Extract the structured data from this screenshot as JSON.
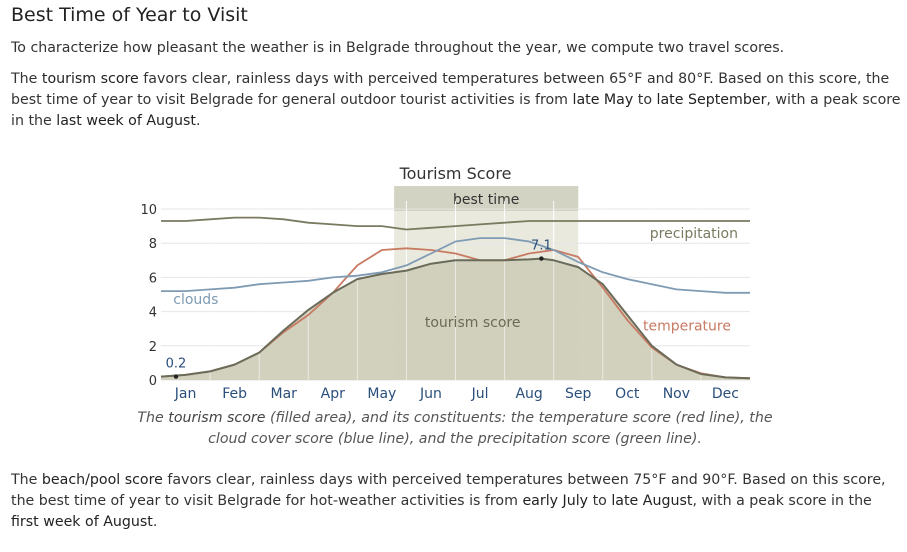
{
  "section": {
    "title": "Best Time of Year to Visit",
    "intro": "To characterize how pleasant the weather is in Belgrade throughout the year, we compute two travel scores."
  },
  "tourism_paragraph": {
    "t1": "The ",
    "t2": "tourism score",
    "t3": " favors clear, rainless days with perceived temperatures between 65°F and 80°F. Based on this score, the best time of year to visit Belgrade for general outdoor tourist activities is from ",
    "t4": "late May",
    "t5": " to ",
    "t6": "late September",
    "t7": ", with a peak score in the ",
    "t8": "last week of August",
    "t9": "."
  },
  "caption": {
    "c1": "The ",
    "c2": "tourism score",
    "c3": " (filled area), and its constituents: the temperature score (red line), the cloud cover score (blue line), and the precipitation score (green line)."
  },
  "beach_paragraph": {
    "t1": "The ",
    "t2": "beach/pool score",
    "t3": " favors clear, rainless days with perceived temperatures between 75°F and 90°F. Based on this score, the best time of year to visit Belgrade for hot-weather activities is from ",
    "t4": "early July",
    "t5": " to ",
    "t6": "late August",
    "t7": ", with a peak score in the ",
    "t8": "first week of August",
    "t9": "."
  },
  "chart_data": {
    "type": "area",
    "title": "Tourism Score",
    "ylim": [
      0,
      10
    ],
    "yticks": [
      0,
      2,
      4,
      6,
      8,
      10
    ],
    "months": [
      "Jan",
      "Feb",
      "Mar",
      "Apr",
      "May",
      "Jun",
      "Jul",
      "Aug",
      "Sep",
      "Oct",
      "Nov",
      "Dec"
    ],
    "xlim": [
      0,
      12
    ],
    "grid": true,
    "best_time": {
      "label": "best time",
      "start": 4.75,
      "end": 8.5
    },
    "annotations": [
      {
        "text": "0.2",
        "x": 0.0,
        "y": 0.2
      },
      {
        "text": "7.1",
        "x": 7.75,
        "y": 7.1
      }
    ],
    "series": [
      {
        "name": "tourism score",
        "kind": "area",
        "color": "#6b6b5a",
        "fill": "#cfcfbb",
        "x": [
          0,
          0.5,
          1,
          1.5,
          2,
          2.5,
          3,
          3.5,
          4,
          4.5,
          5,
          5.5,
          6,
          6.5,
          7,
          7.5,
          7.75,
          8,
          8.5,
          9,
          9.5,
          10,
          10.5,
          11,
          11.5,
          12
        ],
        "y": [
          0.2,
          0.3,
          0.5,
          0.9,
          1.6,
          2.9,
          4.1,
          5.1,
          5.9,
          6.2,
          6.4,
          6.8,
          7.0,
          7.0,
          7.0,
          7.05,
          7.1,
          7.0,
          6.6,
          5.6,
          3.8,
          2.0,
          0.9,
          0.35,
          0.15,
          0.1
        ]
      },
      {
        "name": "temperature",
        "kind": "line",
        "color": "#c87a62",
        "label_pos": "right",
        "x": [
          0,
          0.5,
          1,
          1.5,
          2,
          2.5,
          3,
          3.5,
          4,
          4.5,
          5,
          5.5,
          6,
          6.5,
          7,
          7.5,
          8,
          8.5,
          9,
          9.5,
          10,
          10.5,
          11,
          11.5,
          12
        ],
        "y": [
          0.2,
          0.3,
          0.5,
          0.9,
          1.6,
          2.8,
          3.8,
          5.1,
          6.7,
          7.6,
          7.7,
          7.6,
          7.4,
          7.0,
          7.0,
          7.4,
          7.6,
          7.2,
          5.4,
          3.5,
          1.9,
          0.9,
          0.4,
          0.15,
          0.1
        ]
      },
      {
        "name": "clouds",
        "kind": "line",
        "color": "#7f9bb3",
        "label_pos": "left",
        "x": [
          0,
          0.5,
          1,
          1.5,
          2,
          2.5,
          3,
          3.5,
          4,
          4.5,
          5,
          5.5,
          6,
          6.5,
          7,
          7.5,
          8,
          8.5,
          9,
          9.5,
          10,
          10.5,
          11,
          11.5,
          12
        ],
        "y": [
          5.2,
          5.2,
          5.3,
          5.4,
          5.6,
          5.7,
          5.8,
          6.0,
          6.1,
          6.3,
          6.7,
          7.4,
          8.1,
          8.3,
          8.3,
          8.1,
          7.6,
          6.9,
          6.3,
          5.9,
          5.6,
          5.3,
          5.2,
          5.1,
          5.1
        ]
      },
      {
        "name": "precipitation",
        "kind": "line",
        "color": "#7a7a60",
        "label_pos": "right",
        "x": [
          0,
          0.5,
          1,
          1.5,
          2,
          2.5,
          3,
          3.5,
          4,
          4.5,
          5,
          5.5,
          6,
          6.5,
          7,
          7.5,
          8,
          8.5,
          9,
          9.5,
          10,
          10.5,
          11,
          11.5,
          12
        ],
        "y": [
          9.3,
          9.3,
          9.4,
          9.5,
          9.5,
          9.4,
          9.2,
          9.1,
          9.0,
          9.0,
          8.8,
          8.9,
          9.0,
          9.1,
          9.2,
          9.3,
          9.3,
          9.3,
          9.3,
          9.3,
          9.3,
          9.3,
          9.3,
          9.3,
          9.3
        ]
      }
    ]
  }
}
